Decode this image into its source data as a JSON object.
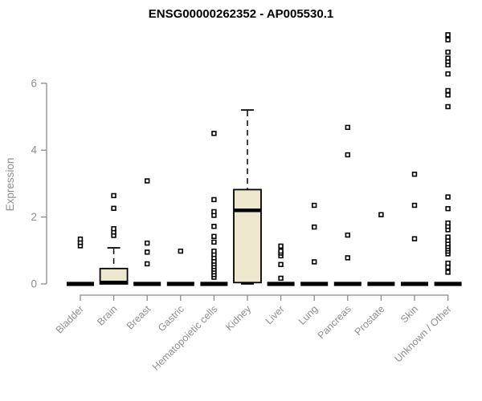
{
  "chart_data": {
    "type": "boxplot",
    "title": "ENSG00000262352 - AP005530.1",
    "ylabel": "Expression",
    "xlabel": "",
    "ylim": [
      0,
      7.6
    ],
    "yticks": [
      0,
      2,
      4,
      6
    ],
    "grid": false,
    "legend": "none",
    "axis_color": "#8a8a8a",
    "tick_label_color": "#8f8f8f",
    "box_fill": "#ede7cd",
    "box_stroke": "#000000",
    "categories": [
      "Bladder",
      "Brain",
      "Breast",
      "Gastric",
      "Hematopoietic cells",
      "Kidney",
      "Liver",
      "Lung",
      "Pancreas",
      "Prostate",
      "Skin",
      "Unknown / Other"
    ],
    "series": [
      {
        "category": "Bladder",
        "q1": 0,
        "median": 0,
        "q3": 0,
        "whisker_low": 0,
        "whisker_high": 0,
        "outliers": [
          1.14,
          1.24,
          1.34
        ]
      },
      {
        "category": "Brain",
        "q1": 0,
        "median": 0.04,
        "q3": 0.46,
        "whisker_low": 0,
        "whisker_high": 1.08,
        "outliers": [
          1.45,
          1.55,
          1.65,
          2.26,
          2.64
        ]
      },
      {
        "category": "Breast",
        "q1": 0,
        "median": 0,
        "q3": 0,
        "whisker_low": 0,
        "whisker_high": 0,
        "outliers": [
          0.6,
          0.95,
          1.22,
          3.08
        ]
      },
      {
        "category": "Gastric",
        "q1": 0,
        "median": 0,
        "q3": 0,
        "whisker_low": 0,
        "whisker_high": 0,
        "outliers": [
          0.98
        ]
      },
      {
        "category": "Hematopoietic cells",
        "q1": 0,
        "median": 0,
        "q3": 0,
        "whisker_low": 0,
        "whisker_high": 0,
        "outliers": [
          0.2,
          0.28,
          0.36,
          0.44,
          0.52,
          0.6,
          0.68,
          0.78,
          0.88,
          0.98,
          1.25,
          1.42,
          1.72,
          2.05,
          2.16,
          2.52,
          4.5
        ]
      },
      {
        "category": "Kidney",
        "q1": 0.04,
        "median": 2.2,
        "q3": 2.82,
        "whisker_low": 0,
        "whisker_high": 5.2,
        "outliers": []
      },
      {
        "category": "Liver",
        "q1": 0,
        "median": 0,
        "q3": 0,
        "whisker_low": 0,
        "whisker_high": 0,
        "outliers": [
          0.17,
          0.58,
          0.84,
          0.92,
          0.98,
          1.13
        ]
      },
      {
        "category": "Lung",
        "q1": 0,
        "median": 0,
        "q3": 0,
        "whisker_low": 0,
        "whisker_high": 0,
        "outliers": [
          0.66,
          1.7,
          2.35
        ]
      },
      {
        "category": "Pancreas",
        "q1": 0,
        "median": 0,
        "q3": 0,
        "whisker_low": 0,
        "whisker_high": 0,
        "outliers": [
          0.78,
          1.46,
          3.86,
          4.68
        ]
      },
      {
        "category": "Prostate",
        "q1": 0,
        "median": 0,
        "q3": 0,
        "whisker_low": 0,
        "whisker_high": 0,
        "outliers": [
          2.07
        ]
      },
      {
        "category": "Skin",
        "q1": 0,
        "median": 0,
        "q3": 0,
        "whisker_low": 0,
        "whisker_high": 0,
        "outliers": [
          1.35,
          2.35,
          3.28
        ]
      },
      {
        "category": "Unknown / Other",
        "q1": 0,
        "median": 0,
        "q3": 0,
        "whisker_low": 0,
        "whisker_high": 0,
        "outliers": [
          0.35,
          0.5,
          0.62,
          0.9,
          0.98,
          1.05,
          1.12,
          1.2,
          1.3,
          1.4,
          1.62,
          1.72,
          1.82,
          2.25,
          2.6,
          5.3,
          5.65,
          5.78,
          6.28,
          6.55,
          6.65,
          6.75,
          6.93,
          7.3,
          7.45
        ]
      }
    ]
  }
}
